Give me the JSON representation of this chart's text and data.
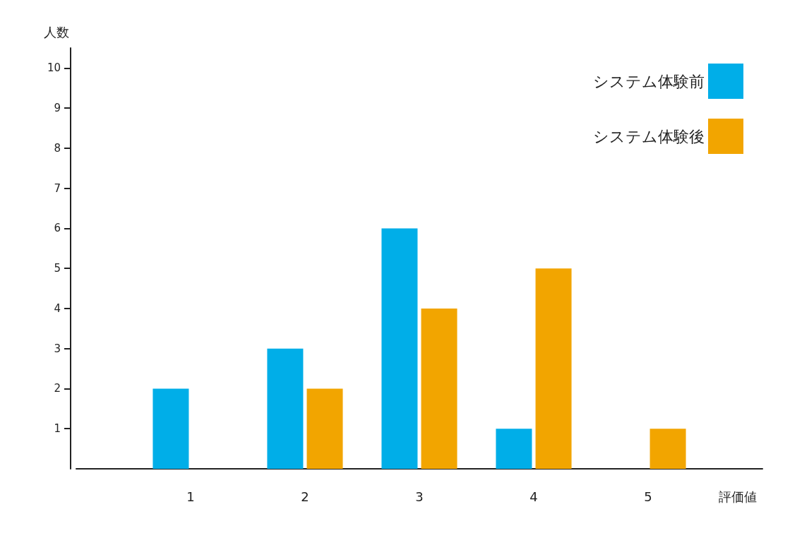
{
  "chart_data": {
    "type": "bar",
    "xlabel": "評価値",
    "ylabel": "人数",
    "categories": [
      null,
      "1",
      "2",
      "3",
      "4",
      "5",
      null
    ],
    "series": [
      {
        "name": "システム体験前",
        "color": "#00aee8",
        "values": [
          null,
          2,
          3,
          6,
          1,
          0,
          null
        ]
      },
      {
        "name": "システム体験後",
        "color": "#f2a500",
        "values": [
          null,
          0,
          2,
          4,
          5,
          1,
          null
        ]
      }
    ],
    "ylim": [
      0,
      10.5
    ],
    "yticks": [
      1,
      2,
      3,
      4,
      5,
      6,
      7,
      8,
      9,
      10
    ],
    "grid": false,
    "legend": "top right"
  }
}
